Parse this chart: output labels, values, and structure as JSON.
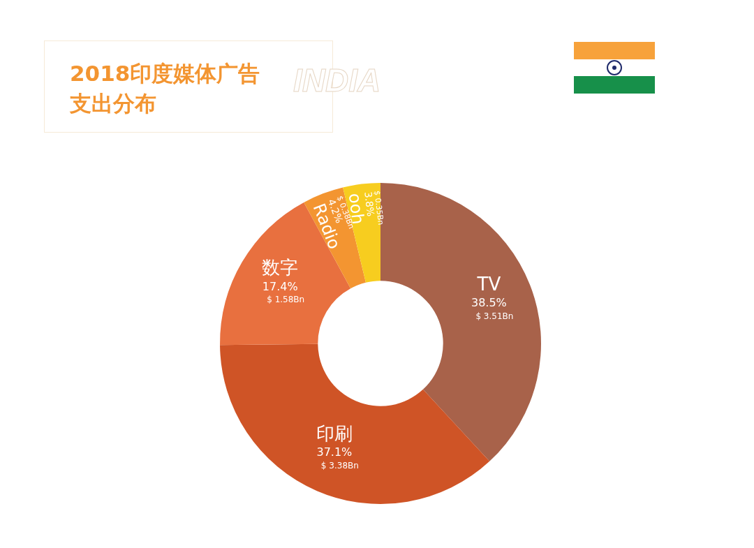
{
  "chart_data": {
    "type": "donut",
    "title": "2018印度媒体广告支出分布",
    "subtitle": "INDIA",
    "categories": [
      "TV",
      "印刷",
      "数字",
      "Radio",
      "ooh"
    ],
    "values": [
      38.5,
      37.1,
      17.4,
      4.2,
      3.8
    ],
    "colors": [
      "#a8624a",
      "#cf5426",
      "#e8703f",
      "#f39531",
      "#f7cd1f"
    ],
    "value_labels": [
      "38.5%\n$ 3.51Bn",
      "37.1%\n$ 3.38Bn",
      "17.4%\n$ 1.58Bn",
      "4.2%\n$ 0.38Bn",
      "3.8%\n$ 0.35Bn"
    ],
    "legend": false
  }
}
